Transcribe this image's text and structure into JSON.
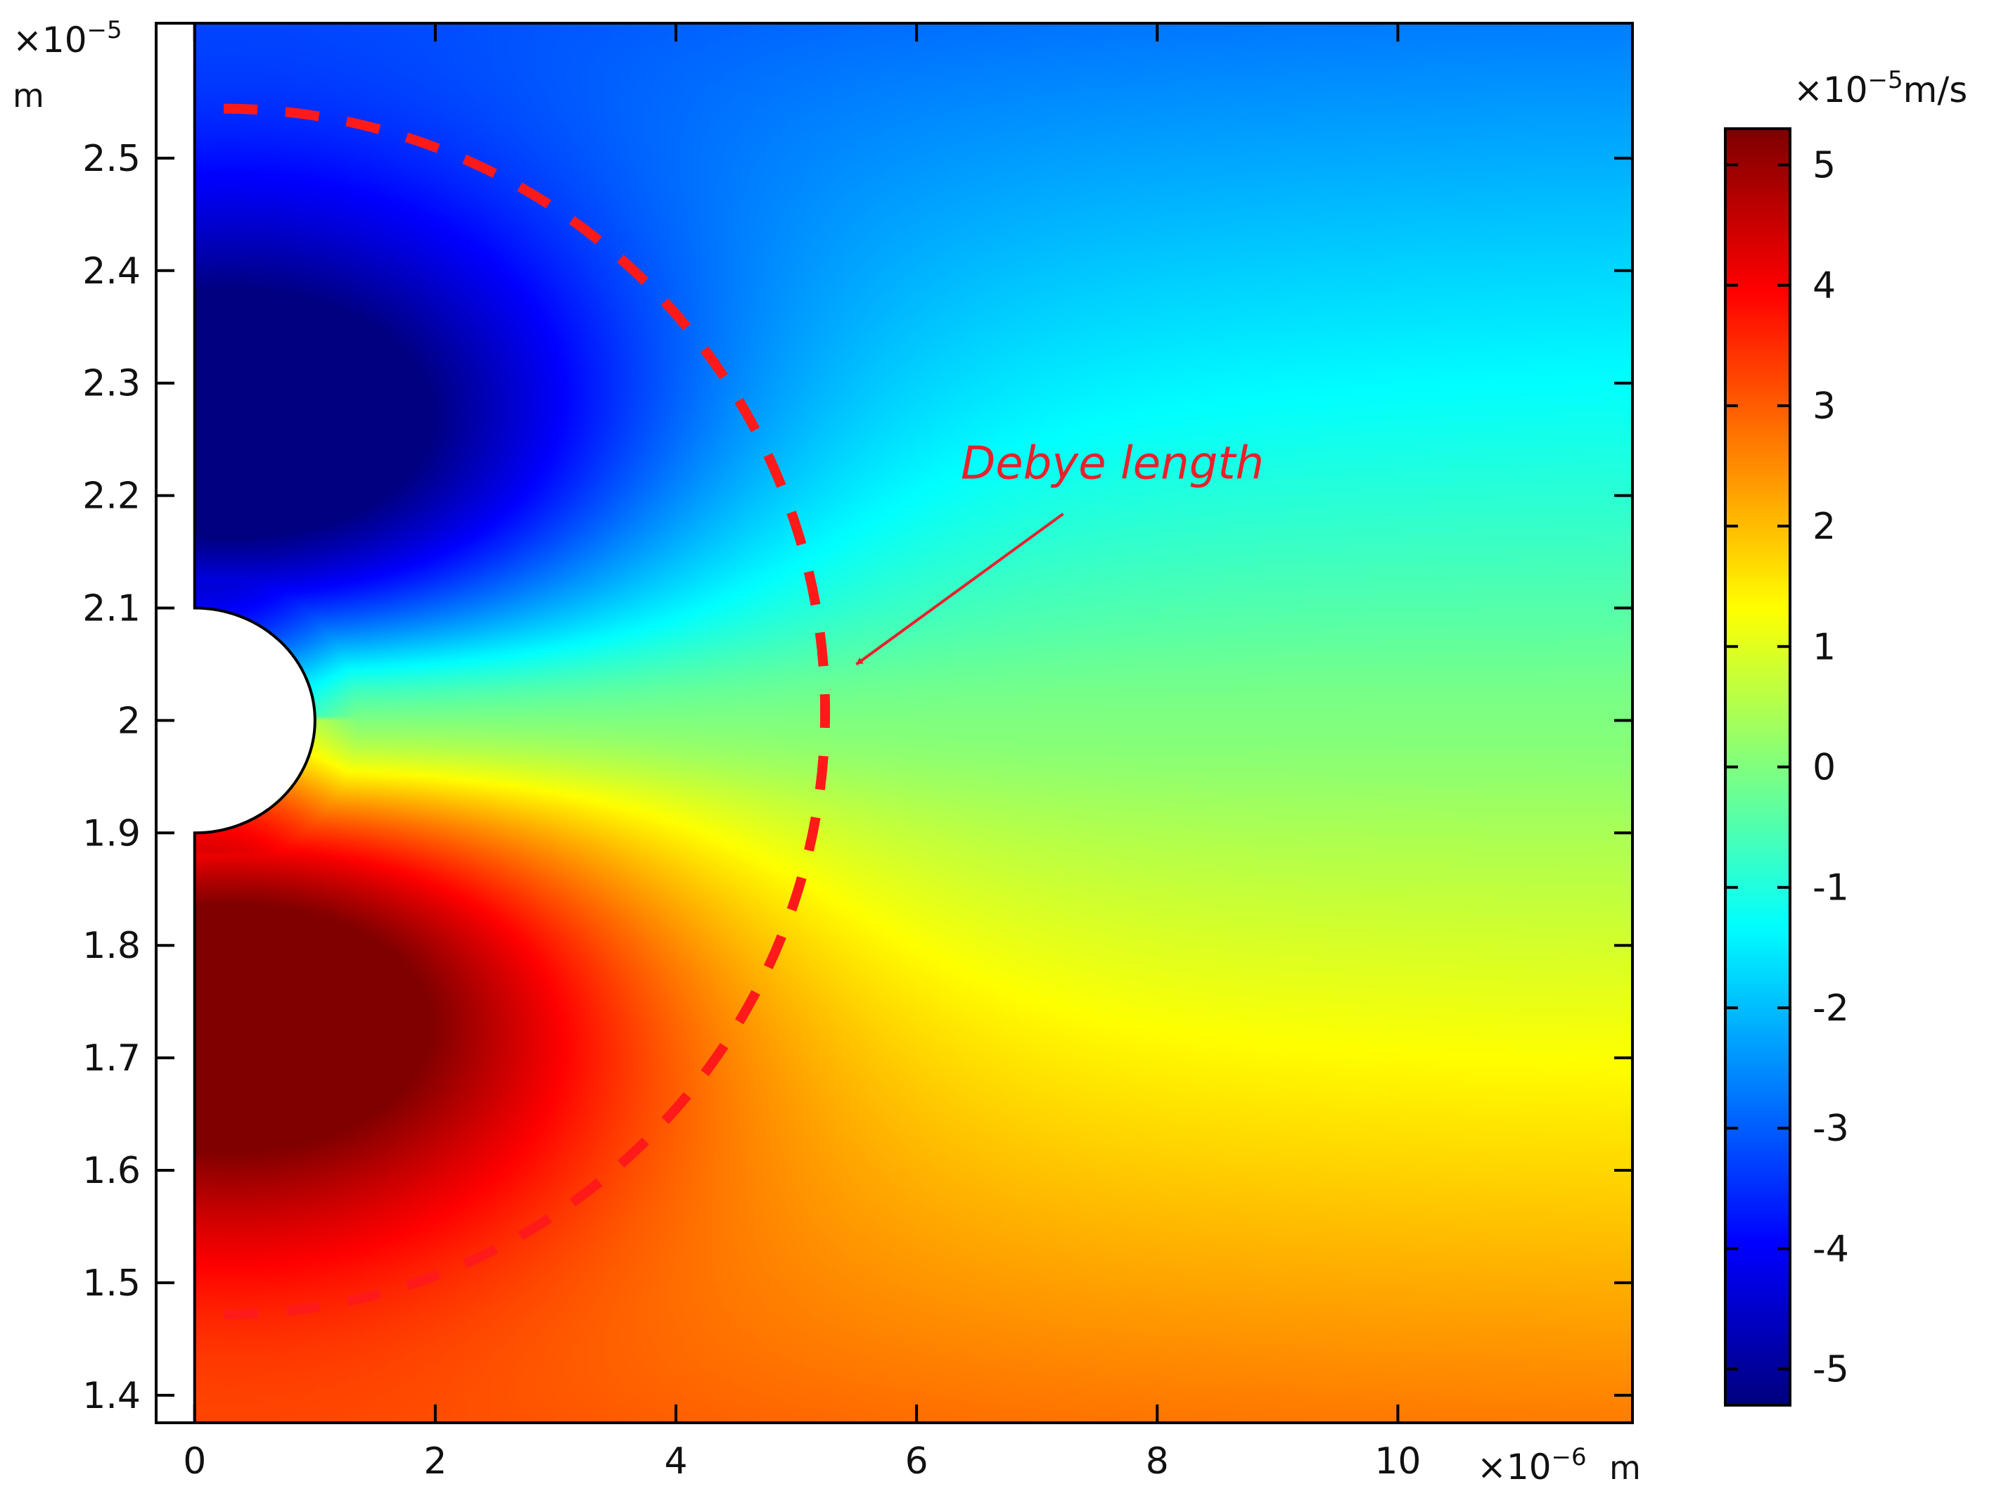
{
  "chart_data": {
    "type": "heatmap",
    "title": "",
    "x_axis": {
      "range": [
        -0.32,
        11.95
      ],
      "ticks": [
        0,
        2,
        4,
        6,
        8,
        10
      ],
      "tick_labels": [
        "0",
        "2",
        "4",
        "6",
        "8",
        "10"
      ],
      "multiplier_label": "×10",
      "multiplier_exponent": "−6",
      "unit": "m"
    },
    "y_axis": {
      "range": [
        1.3755,
        2.62
      ],
      "ticks": [
        1.4,
        1.5,
        1.6,
        1.7,
        1.8,
        1.9,
        2.0,
        2.1,
        2.2,
        2.3,
        2.4,
        2.5
      ],
      "tick_labels": [
        "1.4",
        "1.5",
        "1.6",
        "1.7",
        "1.8",
        "1.9",
        "2",
        "2.1",
        "2.2",
        "2.3",
        "2.4",
        "2.5"
      ],
      "multiplier_label": "×10",
      "multiplier_exponent": "−5",
      "unit": "m"
    },
    "domain": {
      "x_min": 0,
      "y_min": 1.3755,
      "y_max": 2.62,
      "obstacle": {
        "shape": "half-circle",
        "center_x": 0,
        "center_y": 2.0,
        "radius": 0.1
      }
    },
    "field": {
      "colormap": "jet",
      "min": -5.3,
      "max": 5.3,
      "extremes": [
        {
          "x": 0.3,
          "y": 2.23,
          "value": -5.3
        },
        {
          "x": 0.3,
          "y": 1.77,
          "value": 5.3
        }
      ]
    },
    "colorbar": {
      "ticks": [
        5,
        4,
        3,
        2,
        1,
        0,
        -1,
        -2,
        -3,
        -4,
        -5
      ],
      "tick_labels": [
        "5",
        "4",
        "3",
        "2",
        "1",
        "0",
        "-1",
        "-2",
        "-3",
        "-4",
        "-5"
      ],
      "range": [
        -5.3,
        5.3
      ],
      "multiplier_label": "×10",
      "multiplier_exponent": "−5",
      "unit": "m/s"
    },
    "overlay_circle": {
      "style": "dashed",
      "color": "#ff1a1a",
      "center_x": 0.3,
      "center_y": 2.008,
      "radius_x": 5.0,
      "radius_y": 0.536
    },
    "annotation": {
      "text": "Debye length",
      "color": "#e8202a",
      "arrow_to": {
        "x": 5.5,
        "y": 2.05
      },
      "label_at": {
        "x": 6.4,
        "y": 2.215
      }
    }
  }
}
